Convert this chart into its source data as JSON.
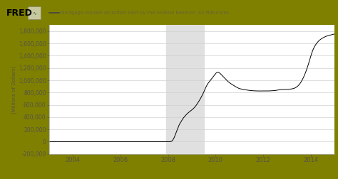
{
  "title": "Mortgage-backed securities held by the Federal Reserve: All Maturities",
  "ylabel": "(Millions of Dollars)",
  "background_color": "#808000",
  "plot_bg_color": "#ffffff",
  "line_color": "#000000",
  "shade_start": 2007.92,
  "shade_end": 2009.5,
  "shade_color": "#e0e0e0",
  "ylim": [
    -200000,
    1900000
  ],
  "xlim": [
    2003.0,
    2015.0
  ],
  "yticks": [
    -200000,
    0,
    200000,
    400000,
    600000,
    800000,
    1000000,
    1200000,
    1400000,
    1600000,
    1800000
  ],
  "xticks": [
    2004,
    2006,
    2008,
    2010,
    2012,
    2014
  ],
  "grid_color": "#d0d0d0",
  "series": [
    [
      2003.0,
      0
    ],
    [
      2003.1,
      0
    ],
    [
      2003.2,
      0
    ],
    [
      2003.3,
      0
    ],
    [
      2003.4,
      0
    ],
    [
      2003.5,
      0
    ],
    [
      2003.6,
      0
    ],
    [
      2003.7,
      0
    ],
    [
      2003.8,
      0
    ],
    [
      2003.9,
      0
    ],
    [
      2004.0,
      0
    ],
    [
      2004.1,
      0
    ],
    [
      2004.2,
      0
    ],
    [
      2004.3,
      0
    ],
    [
      2004.4,
      0
    ],
    [
      2004.5,
      0
    ],
    [
      2004.6,
      0
    ],
    [
      2004.7,
      0
    ],
    [
      2004.8,
      0
    ],
    [
      2004.9,
      0
    ],
    [
      2005.0,
      0
    ],
    [
      2005.1,
      0
    ],
    [
      2005.2,
      0
    ],
    [
      2005.3,
      0
    ],
    [
      2005.4,
      0
    ],
    [
      2005.5,
      0
    ],
    [
      2005.6,
      0
    ],
    [
      2005.7,
      0
    ],
    [
      2005.8,
      0
    ],
    [
      2005.9,
      0
    ],
    [
      2006.0,
      0
    ],
    [
      2006.1,
      0
    ],
    [
      2006.2,
      0
    ],
    [
      2006.3,
      0
    ],
    [
      2006.4,
      0
    ],
    [
      2006.5,
      0
    ],
    [
      2006.6,
      0
    ],
    [
      2006.7,
      0
    ],
    [
      2006.8,
      0
    ],
    [
      2006.9,
      0
    ],
    [
      2007.0,
      0
    ],
    [
      2007.1,
      0
    ],
    [
      2007.2,
      0
    ],
    [
      2007.3,
      0
    ],
    [
      2007.4,
      0
    ],
    [
      2007.5,
      0
    ],
    [
      2007.6,
      0
    ],
    [
      2007.7,
      0
    ],
    [
      2007.8,
      0
    ],
    [
      2007.9,
      0
    ],
    [
      2007.92,
      0
    ],
    [
      2007.95,
      0
    ],
    [
      2007.98,
      0
    ],
    [
      2008.0,
      0
    ],
    [
      2008.02,
      0
    ],
    [
      2008.04,
      0
    ],
    [
      2008.06,
      0
    ],
    [
      2008.08,
      0
    ],
    [
      2008.1,
      0
    ],
    [
      2008.12,
      2000
    ],
    [
      2008.14,
      5000
    ],
    [
      2008.16,
      10000
    ],
    [
      2008.18,
      18000
    ],
    [
      2008.2,
      26000
    ],
    [
      2008.22,
      38000
    ],
    [
      2008.24,
      52000
    ],
    [
      2008.26,
      68000
    ],
    [
      2008.28,
      86000
    ],
    [
      2008.3,
      105000
    ],
    [
      2008.32,
      126000
    ],
    [
      2008.34,
      148000
    ],
    [
      2008.36,
      168000
    ],
    [
      2008.38,
      188000
    ],
    [
      2008.4,
      210000
    ],
    [
      2008.42,
      228000
    ],
    [
      2008.44,
      248000
    ],
    [
      2008.46,
      265000
    ],
    [
      2008.48,
      282000
    ],
    [
      2008.5,
      295000
    ],
    [
      2008.52,
      310000
    ],
    [
      2008.54,
      322000
    ],
    [
      2008.56,
      335000
    ],
    [
      2008.58,
      348000
    ],
    [
      2008.6,
      360000
    ],
    [
      2008.62,
      372000
    ],
    [
      2008.64,
      383000
    ],
    [
      2008.66,
      393000
    ],
    [
      2008.68,
      402000
    ],
    [
      2008.7,
      412000
    ],
    [
      2008.72,
      421000
    ],
    [
      2008.74,
      430000
    ],
    [
      2008.76,
      438000
    ],
    [
      2008.78,
      446000
    ],
    [
      2008.8,
      454000
    ],
    [
      2008.82,
      460000
    ],
    [
      2008.84,
      467000
    ],
    [
      2008.86,
      474000
    ],
    [
      2008.88,
      480000
    ],
    [
      2008.9,
      487000
    ],
    [
      2008.92,
      493000
    ],
    [
      2008.94,
      499000
    ],
    [
      2008.96,
      505000
    ],
    [
      2008.98,
      511000
    ],
    [
      2009.0,
      516000
    ],
    [
      2009.02,
      523000
    ],
    [
      2009.04,
      530000
    ],
    [
      2009.06,
      537000
    ],
    [
      2009.08,
      545000
    ],
    [
      2009.1,
      553000
    ],
    [
      2009.12,
      562000
    ],
    [
      2009.14,
      570000
    ],
    [
      2009.16,
      580000
    ],
    [
      2009.18,
      590000
    ],
    [
      2009.2,
      600000
    ],
    [
      2009.22,
      612000
    ],
    [
      2009.24,
      624000
    ],
    [
      2009.26,
      636000
    ],
    [
      2009.28,
      648000
    ],
    [
      2009.3,
      660000
    ],
    [
      2009.32,
      673000
    ],
    [
      2009.34,
      686000
    ],
    [
      2009.36,
      700000
    ],
    [
      2009.38,
      714000
    ],
    [
      2009.4,
      728000
    ],
    [
      2009.42,
      743000
    ],
    [
      2009.44,
      758000
    ],
    [
      2009.46,
      774000
    ],
    [
      2009.48,
      790000
    ],
    [
      2009.5,
      807000
    ],
    [
      2009.52,
      825000
    ],
    [
      2009.54,
      843000
    ],
    [
      2009.56,
      861000
    ],
    [
      2009.58,
      878000
    ],
    [
      2009.6,
      894000
    ],
    [
      2009.62,
      910000
    ],
    [
      2009.64,
      924000
    ],
    [
      2009.66,
      937000
    ],
    [
      2009.68,
      950000
    ],
    [
      2009.7,
      960000
    ],
    [
      2009.72,
      970000
    ],
    [
      2009.74,
      980000
    ],
    [
      2009.76,
      990000
    ],
    [
      2009.78,
      1000000
    ],
    [
      2009.8,
      1010000
    ],
    [
      2009.82,
      1020000
    ],
    [
      2009.84,
      1030000
    ],
    [
      2009.86,
      1040000
    ],
    [
      2009.88,
      1050000
    ],
    [
      2009.9,
      1060000
    ],
    [
      2009.92,
      1070000
    ],
    [
      2009.94,
      1080000
    ],
    [
      2009.96,
      1090000
    ],
    [
      2009.98,
      1100000
    ],
    [
      2010.0,
      1110000
    ],
    [
      2010.02,
      1118000
    ],
    [
      2010.04,
      1123000
    ],
    [
      2010.06,
      1128000
    ],
    [
      2010.08,
      1130000
    ],
    [
      2010.1,
      1130000
    ],
    [
      2010.12,
      1128000
    ],
    [
      2010.14,
      1125000
    ],
    [
      2010.16,
      1120000
    ],
    [
      2010.18,
      1115000
    ],
    [
      2010.2,
      1108000
    ],
    [
      2010.22,
      1100000
    ],
    [
      2010.24,
      1092000
    ],
    [
      2010.26,
      1084000
    ],
    [
      2010.28,
      1076000
    ],
    [
      2010.3,
      1068000
    ],
    [
      2010.32,
      1060000
    ],
    [
      2010.34,
      1052000
    ],
    [
      2010.36,
      1044000
    ],
    [
      2010.38,
      1036000
    ],
    [
      2010.4,
      1028000
    ],
    [
      2010.42,
      1020000
    ],
    [
      2010.44,
      1012000
    ],
    [
      2010.46,
      1004000
    ],
    [
      2010.48,
      996000
    ],
    [
      2010.5,
      988000
    ],
    [
      2010.52,
      980000
    ],
    [
      2010.54,
      974000
    ],
    [
      2010.56,
      968000
    ],
    [
      2010.58,
      962000
    ],
    [
      2010.6,
      956000
    ],
    [
      2010.62,
      950000
    ],
    [
      2010.64,
      945000
    ],
    [
      2010.66,
      940000
    ],
    [
      2010.68,
      935000
    ],
    [
      2010.7,
      930000
    ],
    [
      2010.72,
      925000
    ],
    [
      2010.74,
      920000
    ],
    [
      2010.76,
      915000
    ],
    [
      2010.78,
      910000
    ],
    [
      2010.8,
      905000
    ],
    [
      2010.82,
      900000
    ],
    [
      2010.84,
      896000
    ],
    [
      2010.86,
      892000
    ],
    [
      2010.88,
      888000
    ],
    [
      2010.9,
      884000
    ],
    [
      2010.92,
      880000
    ],
    [
      2010.94,
      876000
    ],
    [
      2010.96,
      872000
    ],
    [
      2010.98,
      868000
    ],
    [
      2011.0,
      864000
    ],
    [
      2011.05,
      860000
    ],
    [
      2011.1,
      856000
    ],
    [
      2011.15,
      852000
    ],
    [
      2011.2,
      848000
    ],
    [
      2011.25,
      845000
    ],
    [
      2011.3,
      842000
    ],
    [
      2011.35,
      839000
    ],
    [
      2011.4,
      836000
    ],
    [
      2011.45,
      834000
    ],
    [
      2011.5,
      832000
    ],
    [
      2011.55,
      830000
    ],
    [
      2011.6,
      829000
    ],
    [
      2011.65,
      828000
    ],
    [
      2011.7,
      827000
    ],
    [
      2011.75,
      826000
    ],
    [
      2011.8,
      826000
    ],
    [
      2011.85,
      826000
    ],
    [
      2011.9,
      826000
    ],
    [
      2011.95,
      826000
    ],
    [
      2012.0,
      826000
    ],
    [
      2012.05,
      826000
    ],
    [
      2012.1,
      826000
    ],
    [
      2012.15,
      826000
    ],
    [
      2012.2,
      826000
    ],
    [
      2012.25,
      827000
    ],
    [
      2012.3,
      828000
    ],
    [
      2012.35,
      829000
    ],
    [
      2012.4,
      830000
    ],
    [
      2012.45,
      831000
    ],
    [
      2012.5,
      833000
    ],
    [
      2012.55,
      836000
    ],
    [
      2012.6,
      840000
    ],
    [
      2012.65,
      844000
    ],
    [
      2012.7,
      848000
    ],
    [
      2012.75,
      850000
    ],
    [
      2012.8,
      851000
    ],
    [
      2012.85,
      851000
    ],
    [
      2012.9,
      851000
    ],
    [
      2012.95,
      851000
    ],
    [
      2013.0,
      852000
    ],
    [
      2013.05,
      853000
    ],
    [
      2013.1,
      855000
    ],
    [
      2013.15,
      857000
    ],
    [
      2013.2,
      860000
    ],
    [
      2013.25,
      864000
    ],
    [
      2013.3,
      870000
    ],
    [
      2013.35,
      878000
    ],
    [
      2013.4,
      890000
    ],
    [
      2013.45,
      905000
    ],
    [
      2013.5,
      925000
    ],
    [
      2013.55,
      950000
    ],
    [
      2013.6,
      980000
    ],
    [
      2013.65,
      1015000
    ],
    [
      2013.7,
      1055000
    ],
    [
      2013.75,
      1100000
    ],
    [
      2013.8,
      1150000
    ],
    [
      2013.85,
      1205000
    ],
    [
      2013.9,
      1265000
    ],
    [
      2013.95,
      1330000
    ],
    [
      2014.0,
      1395000
    ],
    [
      2014.05,
      1455000
    ],
    [
      2014.1,
      1505000
    ],
    [
      2014.15,
      1545000
    ],
    [
      2014.2,
      1578000
    ],
    [
      2014.25,
      1605000
    ],
    [
      2014.3,
      1628000
    ],
    [
      2014.35,
      1648000
    ],
    [
      2014.4,
      1664000
    ],
    [
      2014.45,
      1678000
    ],
    [
      2014.5,
      1690000
    ],
    [
      2014.55,
      1700000
    ],
    [
      2014.6,
      1710000
    ],
    [
      2014.65,
      1718000
    ],
    [
      2014.7,
      1725000
    ],
    [
      2014.75,
      1730000
    ],
    [
      2014.8,
      1735000
    ],
    [
      2014.85,
      1740000
    ],
    [
      2014.9,
      1745000
    ],
    [
      2014.95,
      1750000
    ],
    [
      2015.0,
      1755000
    ]
  ]
}
